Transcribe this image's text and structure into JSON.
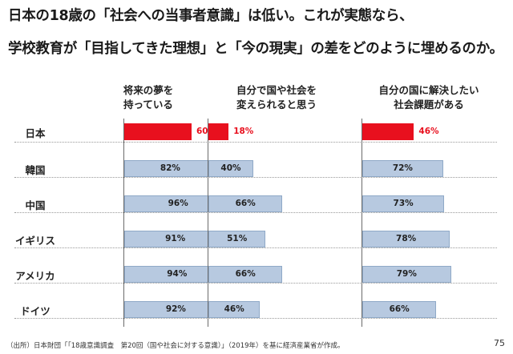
{
  "title": {
    "line1": "日本の18歳の「社会への当事者意識」は低い。これが実態なら、",
    "line2": "学校教育が「目指してきた理想」と「今の現実」の差をどのように埋めるのか。"
  },
  "source": "（出所）日本財団「「18歳意識調査　第20回（国や社会に対する意識）」（2019年）を基に経済産業省が作成。",
  "page_number": "75",
  "colors": {
    "highlight": "#e8101e",
    "bar": "#b7c9e0",
    "bar_border": "#8fa9c7"
  },
  "chart_data": {
    "type": "bar",
    "orientation": "horizontal",
    "categories": [
      "日本",
      "韓国",
      "中国",
      "イギリス",
      "アメリカ",
      "ドイツ"
    ],
    "highlight_category": "日本",
    "unit": "%",
    "xlim": [
      0,
      100
    ],
    "panels": [
      {
        "header": [
          "将来の夢を",
          "持っている"
        ],
        "values": [
          60,
          82,
          96,
          91,
          94,
          92
        ],
        "labels": [
          "60%",
          "82%",
          "96%",
          "91%",
          "94%",
          "92%"
        ]
      },
      {
        "header": [
          "自分で国や社会を",
          "変えられると思う"
        ],
        "values": [
          18,
          40,
          66,
          51,
          66,
          46
        ],
        "labels": [
          "18%",
          "40%",
          "66%",
          "51%",
          "66%",
          "46%"
        ]
      },
      {
        "header": [
          "自分の国に解決したい",
          "社会課題がある"
        ],
        "values": [
          46,
          72,
          73,
          78,
          79,
          66
        ],
        "labels": [
          "46%",
          "72%",
          "73%",
          "78%",
          "79%",
          "66%"
        ]
      }
    ]
  }
}
